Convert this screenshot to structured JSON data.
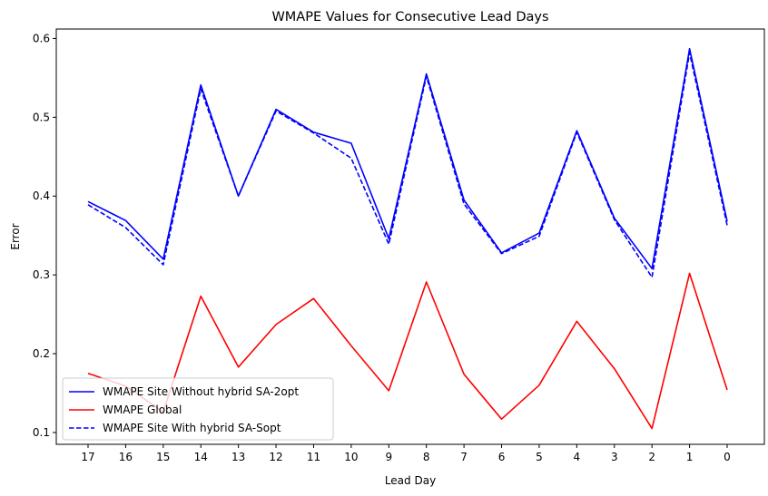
{
  "chart_data": {
    "type": "line",
    "title": "WMAPE Values for Consecutive Lead Days",
    "xlabel": "Lead Day",
    "ylabel": "Error",
    "categories": [
      "17",
      "16",
      "15",
      "14",
      "13",
      "12",
      "11",
      "10",
      "9",
      "8",
      "7",
      "6",
      "5",
      "4",
      "3",
      "2",
      "1",
      "0"
    ],
    "ylim": [
      0.085,
      0.612
    ],
    "yticks": [
      0.1,
      0.2,
      0.3,
      0.4,
      0.5,
      0.6
    ],
    "ytick_labels": [
      "0.1",
      "0.2",
      "0.3",
      "0.4",
      "0.5",
      "0.6"
    ],
    "grid": false,
    "legend_position": "lower-left",
    "series": [
      {
        "name": "WMAPE Site Without hybrid SA-2opt",
        "color": "#0000ff",
        "style": "solid",
        "values": [
          0.393,
          0.369,
          0.32,
          0.541,
          0.4,
          0.51,
          0.481,
          0.467,
          0.346,
          0.555,
          0.395,
          0.328,
          0.353,
          0.483,
          0.372,
          0.308,
          0.587,
          0.368
        ]
      },
      {
        "name": "WMAPE Global",
        "color": "#ff0000",
        "style": "solid",
        "values": [
          0.175,
          0.159,
          0.126,
          0.273,
          0.183,
          0.237,
          0.27,
          0.21,
          0.153,
          0.291,
          0.174,
          0.117,
          0.16,
          0.241,
          0.181,
          0.105,
          0.302,
          0.154
        ]
      },
      {
        "name": "WMAPE Site With hybrid SA-Sopt",
        "color": "#0000ff",
        "style": "dashed",
        "values": [
          0.389,
          0.36,
          0.313,
          0.536,
          0.4,
          0.508,
          0.48,
          0.448,
          0.339,
          0.552,
          0.39,
          0.327,
          0.349,
          0.481,
          0.37,
          0.297,
          0.582,
          0.363
        ]
      }
    ]
  }
}
